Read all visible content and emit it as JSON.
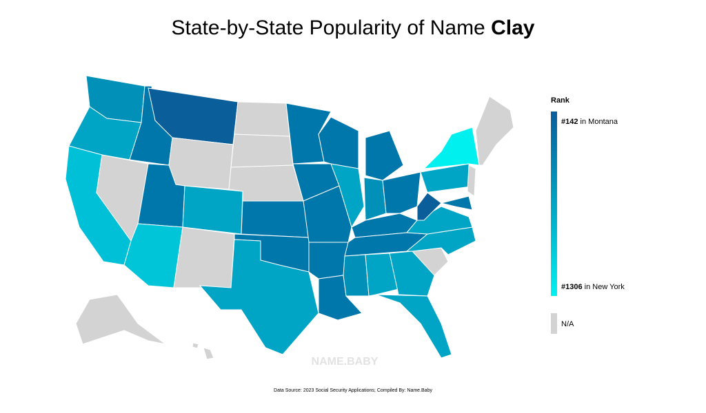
{
  "title": {
    "prefix": "State-by-State Popularity of Name",
    "name": "Clay"
  },
  "legend": {
    "heading": "Rank",
    "top": {
      "rank": "#142",
      "label": "in Montana"
    },
    "bottom": {
      "rank": "#1306",
      "label": "in New York"
    },
    "na": "N/A"
  },
  "watermark": "NAME.BABY",
  "footer": "Data Source: 2023 Social Security Applications; Compiled By: Name.Baby"
}
